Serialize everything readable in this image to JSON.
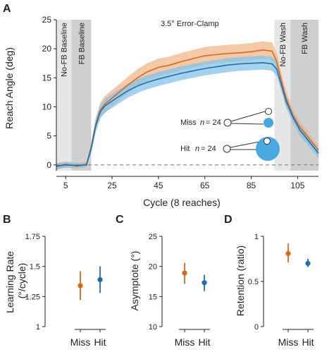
{
  "colors": {
    "miss": "#d46a1e",
    "miss_band": "#f0b78a",
    "hit": "#1f6fae",
    "hit_band": "#86c3e8",
    "target": "#4aa8e0",
    "phase_light": "#e6e6e6",
    "phase_dark": "#cfcfcf"
  },
  "chart_data": [
    {
      "panel": "A",
      "type": "line",
      "title": "3.5° Error-Clamp",
      "xlabel": "Cycle (8 reaches)",
      "ylabel": "Reach Angle (deg)",
      "xlim": [
        1,
        114
      ],
      "ylim": [
        -1,
        25
      ],
      "xticks": [
        5,
        25,
        45,
        65,
        85,
        105
      ],
      "yticks": [
        0,
        5,
        10,
        15,
        20,
        25
      ],
      "phases": [
        "No-FB Baseline",
        "FB Baseline",
        "No-FB Wash",
        "FB Wash"
      ],
      "legend": [
        {
          "label": "Miss",
          "n_label": "n",
          "n_value": "= 24"
        },
        {
          "label": "Hit",
          "n_label": "n",
          "n_value": "= 24"
        }
      ],
      "zero_line": true,
      "series": [
        {
          "name": "Miss",
          "x": [
            1,
            5,
            10,
            14,
            16,
            18,
            20,
            22,
            25,
            28,
            32,
            36,
            40,
            45,
            50,
            55,
            60,
            65,
            70,
            75,
            80,
            85,
            90,
            94,
            96,
            98,
            100,
            103,
            106,
            110,
            114
          ],
          "y": [
            -0.3,
            0.1,
            -0.2,
            0.1,
            3.0,
            7.0,
            9.5,
            10.5,
            11.5,
            12.5,
            13.8,
            15.0,
            16.0,
            16.8,
            17.2,
            17.8,
            18.3,
            18.8,
            19.0,
            19.2,
            19.3,
            19.5,
            19.8,
            19.6,
            17.8,
            14.5,
            11.5,
            8.5,
            6.5,
            4.5,
            2.5
          ],
          "err": [
            0.6,
            0.5,
            0.5,
            0.5,
            0.9,
            1.2,
            1.3,
            1.4,
            1.4,
            1.4,
            1.4,
            1.5,
            1.5,
            1.5,
            1.5,
            1.5,
            1.5,
            1.5,
            1.5,
            1.5,
            1.5,
            1.5,
            1.5,
            1.5,
            1.5,
            1.4,
            1.3,
            1.2,
            1.1,
            1.0,
            0.9
          ]
        },
        {
          "name": "Hit",
          "x": [
            1,
            5,
            10,
            14,
            16,
            18,
            20,
            22,
            25,
            28,
            32,
            36,
            40,
            45,
            50,
            55,
            60,
            65,
            70,
            75,
            80,
            85,
            90,
            94,
            96,
            98,
            100,
            103,
            106,
            110,
            114
          ],
          "y": [
            -0.2,
            0.0,
            -0.1,
            0.0,
            2.8,
            6.8,
            9.2,
            10.2,
            11.0,
            11.8,
            12.8,
            13.6,
            14.2,
            14.8,
            15.3,
            15.8,
            16.2,
            16.6,
            16.9,
            17.2,
            17.4,
            17.5,
            17.6,
            17.4,
            16.5,
            13.8,
            11.0,
            8.2,
            6.0,
            4.0,
            2.0
          ],
          "err": [
            0.5,
            0.5,
            0.4,
            0.4,
            0.8,
            1.1,
            1.2,
            1.2,
            1.2,
            1.2,
            1.2,
            1.2,
            1.2,
            1.2,
            1.2,
            1.2,
            1.2,
            1.2,
            1.2,
            1.2,
            1.2,
            1.2,
            1.2,
            1.2,
            1.2,
            1.1,
            1.1,
            1.0,
            1.0,
            0.9,
            0.8
          ]
        }
      ]
    },
    {
      "panel": "B",
      "type": "scatter",
      "ylabel": "Learning Rate (°/cycle)",
      "categories": [
        "Miss",
        "Hit"
      ],
      "ylim": [
        1,
        1.75
      ],
      "yticks": [
        "1",
        "1.25",
        "1.5",
        "1.75"
      ],
      "series": [
        {
          "values": [
            1.34,
            1.39
          ],
          "err_low": [
            1.22,
            1.28
          ],
          "err_high": [
            1.46,
            1.5
          ]
        }
      ]
    },
    {
      "panel": "C",
      "type": "scatter",
      "ylabel": "Asymptote (°)",
      "categories": [
        "Miss",
        "Hit"
      ],
      "ylim": [
        10,
        25
      ],
      "yticks": [
        "10",
        "15",
        "20",
        "25"
      ],
      "series": [
        {
          "values": [
            18.9,
            17.3
          ],
          "err_low": [
            17.1,
            15.9
          ],
          "err_high": [
            20.6,
            18.6
          ]
        }
      ]
    },
    {
      "panel": "D",
      "type": "scatter",
      "ylabel": "Retention (ratio)",
      "categories": [
        "Miss",
        "Hit"
      ],
      "ylim": [
        0,
        1
      ],
      "yticks": [
        "0",
        "0.5",
        "1"
      ],
      "series": [
        {
          "values": [
            0.81,
            0.7
          ],
          "err_low": [
            0.71,
            0.66
          ],
          "err_high": [
            0.92,
            0.75
          ]
        }
      ]
    }
  ]
}
